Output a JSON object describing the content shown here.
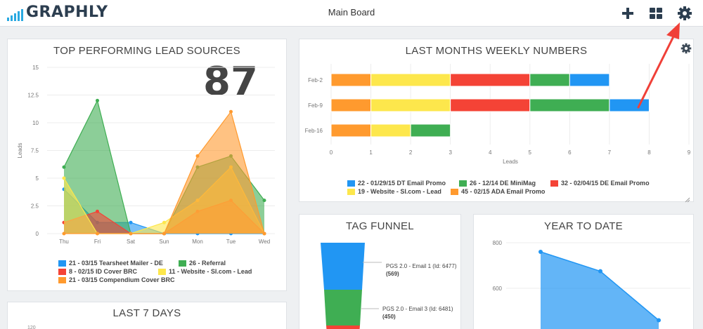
{
  "app": {
    "logo_text": "GRAPHLY",
    "board_title": "Main Board",
    "icons": [
      "plus-icon",
      "grid-icon",
      "gear-icon"
    ]
  },
  "colors": {
    "blue": "#2196f3",
    "green": "#3fae53",
    "red": "#f44336",
    "yellow": "#fde74c",
    "orange": "#ff9a2e",
    "annotation_arrow": "#f04038"
  },
  "lead_sources": {
    "title": "TOP PERFORMING LEAD SOURCES",
    "big_number": "87",
    "chart_data": {
      "type": "area",
      "categories": [
        "Thu",
        "Fri",
        "Sat",
        "Sun",
        "Mon",
        "Tue",
        "Wed"
      ],
      "ylabel": "Leads",
      "ylim": [
        0,
        15
      ],
      "yticks": [
        "0",
        "2.5",
        "5",
        "7.5",
        "10",
        "12.5",
        "15"
      ],
      "legend_position": "bottom",
      "series": [
        {
          "name": "21 - 03/15 Tearsheet Mailer - DE",
          "color": "#2196f3",
          "values": [
            4,
            1,
            1,
            0,
            0,
            0,
            0
          ]
        },
        {
          "name": "26 - Referral",
          "color": "#3fae53",
          "values": [
            6,
            12,
            0,
            0,
            6,
            7,
            3
          ]
        },
        {
          "name": "8 - 02/15 ID Cover BRC",
          "color": "#f44336",
          "values": [
            1,
            2,
            0,
            0,
            2,
            3,
            0
          ]
        },
        {
          "name": "11 - Website - SI.com - Lead",
          "color": "#fde74c",
          "values": [
            5,
            0,
            0,
            1,
            3,
            6,
            0
          ]
        },
        {
          "name": "21 - 03/15 Compendium Cover BRC",
          "color": "#ff9a2e",
          "values": [
            0,
            0,
            0,
            0,
            7,
            11,
            0
          ]
        }
      ]
    }
  },
  "weekly": {
    "title": "LAST MONTHS WEEKLY NUMBERS",
    "chart_data": {
      "type": "bar",
      "orientation": "horizontal",
      "stacked": true,
      "categories": [
        "Feb-2",
        "Feb-9",
        "Feb-16"
      ],
      "xlabel": "Leads",
      "xlim": [
        0,
        9
      ],
      "xticks": [
        "0",
        "1",
        "2",
        "3",
        "4",
        "5",
        "6",
        "7",
        "8",
        "9"
      ],
      "legend_position": "bottom",
      "series": [
        {
          "name": "45 - 02/15 ADA Email Promo",
          "color": "#ff9a2e",
          "values": [
            1,
            1,
            1
          ]
        },
        {
          "name": "19 - Website - SI.com - Lead",
          "color": "#fde74c",
          "values": [
            2,
            2,
            1
          ]
        },
        {
          "name": "32 - 02/04/15 DE Email Promo",
          "color": "#f44336",
          "values": [
            2,
            2,
            0
          ]
        },
        {
          "name": "26 - 12/14 DE MiniMag",
          "color": "#3fae53",
          "values": [
            1,
            2,
            1
          ]
        },
        {
          "name": "22 - 01/29/15 DT Email Promo",
          "color": "#2196f3",
          "values": [
            1,
            1,
            0
          ]
        }
      ],
      "legend_order": [
        4,
        3,
        2,
        1,
        0
      ]
    }
  },
  "last7": {
    "title": "LAST 7 DAYS",
    "first_tick": "120"
  },
  "funnel": {
    "title": "TAG FUNNEL",
    "stages": [
      {
        "label": "PGS 2.0 - Email 1 (Id: 6477)",
        "count": "(569)",
        "color": "#2196f3"
      },
      {
        "label": "PGS 2.0 - Email 3 (Id: 6481)",
        "count": "(450)",
        "color": "#3fae53"
      },
      {
        "label": "",
        "count": "",
        "color": "#f44336"
      }
    ]
  },
  "ytd": {
    "title": "YEAR TO DATE",
    "chart_data": {
      "type": "area",
      "yticks": [
        "800",
        "600"
      ],
      "ylim": [
        450,
        850
      ],
      "values": [
        760,
        675,
        460
      ],
      "ylabel": "",
      "color": "#2196f3"
    }
  }
}
